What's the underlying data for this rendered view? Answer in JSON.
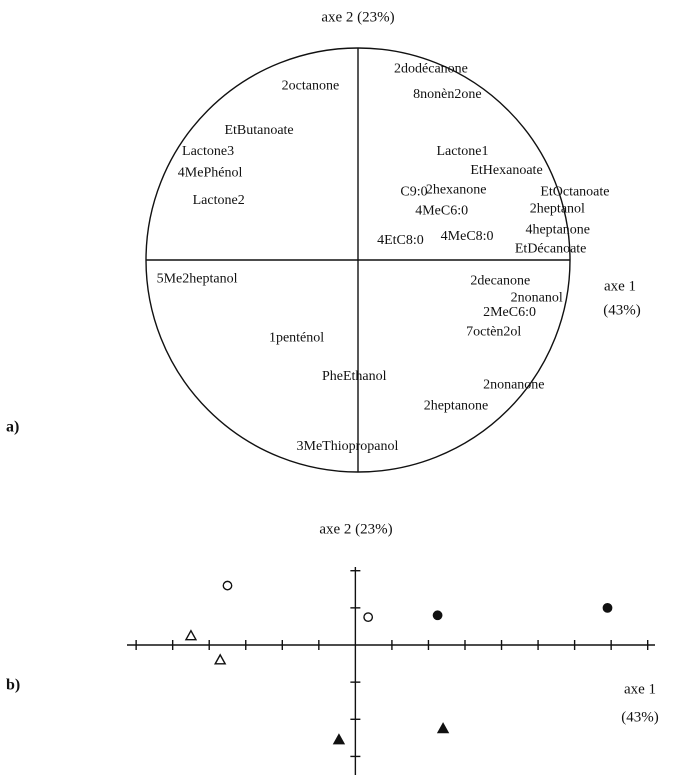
{
  "chart_data": [
    {
      "type": "correlation-circle",
      "y_label": "axe 2 (23%)",
      "x_label": [
        "axe 1",
        "(43%)"
      ],
      "panel": "a)",
      "xlim": [
        -1,
        1
      ],
      "ylim": [
        -1,
        1
      ],
      "labels": [
        "2dodécanone",
        "2octanone",
        "8nonèn2one",
        "EtButanoate",
        "Lactone3",
        "4MePhénol",
        "Lactone2",
        "Lactone1",
        "EtHexanoate",
        "C9:0",
        "2hexanone",
        "EtOctanoate",
        "4MeC6:0",
        "2heptanol",
        "4heptanone",
        "4EtC8:0",
        "4MeC8:0",
        "EtDécanoate",
        "5Me2heptanol",
        "2decanone",
        "2nonanol",
        "2MeC6:0",
        "7octèn2ol",
        "1penténol",
        "PheEthanol",
        "2nonanone",
        "2heptanone",
        "3MeThiopropanol"
      ],
      "x": [
        0.17,
        -0.36,
        0.26,
        -0.63,
        -0.83,
        -0.85,
        -0.78,
        0.37,
        0.53,
        0.2,
        0.32,
        0.86,
        0.27,
        0.81,
        0.79,
        0.09,
        0.39,
        0.74,
        -0.95,
        0.53,
        0.72,
        0.59,
        0.51,
        -0.42,
        -0.17,
        0.59,
        0.31,
        -0.29
      ],
      "y": [
        0.9,
        0.82,
        0.78,
        0.61,
        0.51,
        0.41,
        0.28,
        0.51,
        0.42,
        0.32,
        0.33,
        0.32,
        0.23,
        0.24,
        0.14,
        0.09,
        0.11,
        0.05,
        -0.09,
        -0.1,
        -0.18,
        -0.25,
        -0.34,
        -0.37,
        -0.55,
        -0.59,
        -0.69,
        -0.88
      ]
    },
    {
      "type": "scatter",
      "y_label": "axe 2 (23%)",
      "x_label": [
        "axe 1",
        "(43%)"
      ],
      "panel": "b)",
      "xlim": [
        -6.25,
        8.2
      ],
      "ylim": [
        -3.5,
        2.1
      ],
      "xticks": [
        -6,
        -5,
        -4,
        -3,
        -2,
        -1,
        1,
        2,
        3,
        4,
        5,
        6,
        7,
        8
      ],
      "yticks": [
        -3,
        -2,
        -1,
        1,
        2
      ],
      "series": [
        {
          "marker": "circle",
          "filled": false,
          "color": "#111",
          "x": [
            -3.5,
            0.35
          ],
          "y": [
            1.6,
            0.75
          ]
        },
        {
          "marker": "circle",
          "filled": true,
          "color": "#111",
          "x": [
            2.25,
            6.9
          ],
          "y": [
            0.8,
            1.0
          ]
        },
        {
          "marker": "triangle",
          "filled": false,
          "color": "#111",
          "x": [
            -4.5,
            -3.7
          ],
          "y": [
            0.25,
            -0.4
          ]
        },
        {
          "marker": "triangle",
          "filled": true,
          "color": "#111",
          "x": [
            -0.45,
            2.4
          ],
          "y": [
            -2.55,
            -2.25
          ]
        }
      ]
    }
  ]
}
